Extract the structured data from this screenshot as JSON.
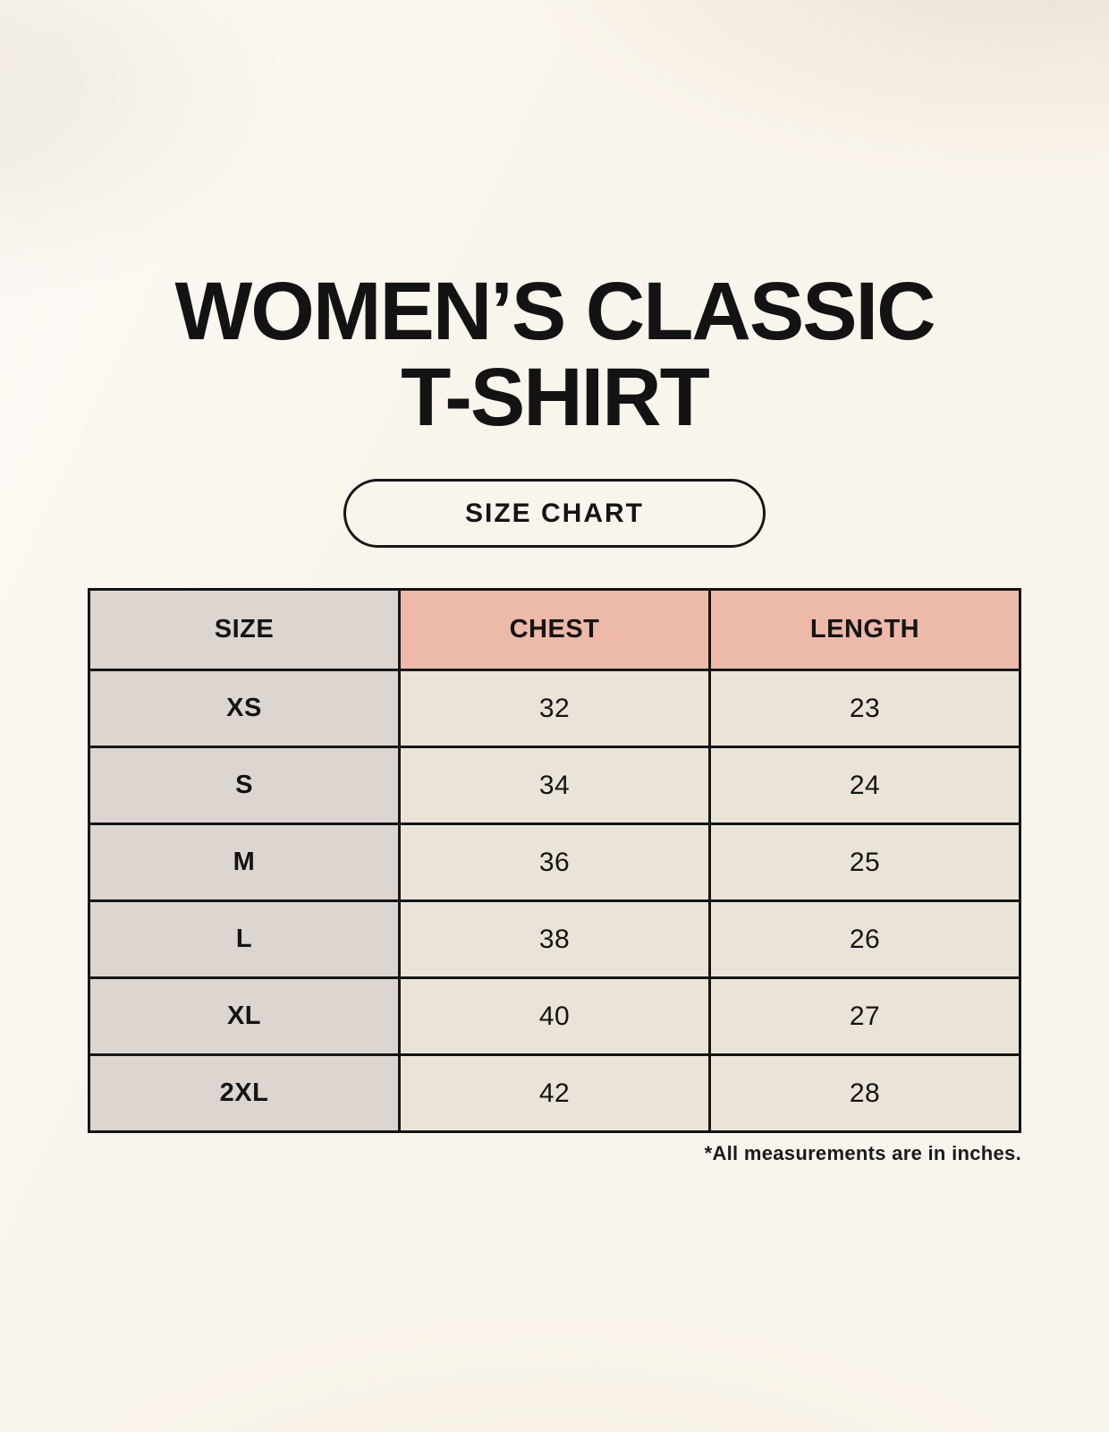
{
  "title": {
    "line1": "WOMEN’S CLASSIC",
    "line2": "T-SHIRT"
  },
  "size_chart_button": {
    "label": "SIZE CHART"
  },
  "table": {
    "headers": {
      "size": "SIZE",
      "chest": "CHEST",
      "length": "LENGTH"
    },
    "rows": [
      {
        "size": "XS",
        "chest": "32",
        "length": "23"
      },
      {
        "size": "S",
        "chest": "34",
        "length": "24"
      },
      {
        "size": "M",
        "chest": "36",
        "length": "25"
      },
      {
        "size": "L",
        "chest": "38",
        "length": "26"
      },
      {
        "size": "XL",
        "chest": "40",
        "length": "27"
      },
      {
        "size": "2XL",
        "chest": "42",
        "length": "28"
      }
    ]
  },
  "footnote": "*All measurements are in inches.",
  "colors": {
    "page_bg": "#faf5ec",
    "header_pink": "#edbaa9",
    "size_col_bg": "#dcd5d0",
    "cell_bg": "#eae3d7",
    "border_color": "#141414"
  },
  "chart_data": {
    "type": "table",
    "title": "WOMEN’S CLASSIC T-SHIRT",
    "subtitle": "SIZE CHART",
    "columns": [
      "SIZE",
      "CHEST",
      "LENGTH"
    ],
    "rows": [
      [
        "XS",
        32,
        23
      ],
      [
        "S",
        34,
        24
      ],
      [
        "M",
        36,
        25
      ],
      [
        "L",
        38,
        26
      ],
      [
        "XL",
        40,
        27
      ],
      [
        "2XL",
        42,
        28
      ]
    ],
    "note": "*All measurements are in inches."
  }
}
